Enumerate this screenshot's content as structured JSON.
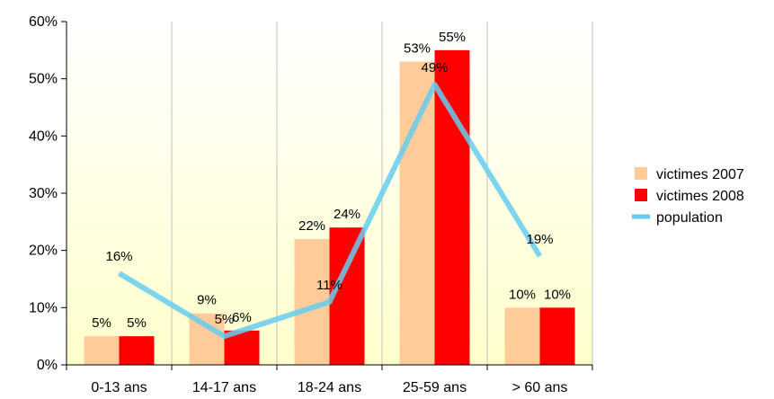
{
  "chart_data": {
    "type": "bar",
    "categories": [
      "0-13 ans",
      "14-17 ans",
      "18-24 ans",
      "25-59 ans",
      "> 60 ans"
    ],
    "series": [
      {
        "name": "victimes 2007",
        "kind": "bar",
        "color": "#FFCC99",
        "values": [
          5,
          9,
          22,
          53,
          10
        ]
      },
      {
        "name": "victimes 2008",
        "kind": "bar",
        "color": "#FF0000",
        "values": [
          5,
          6,
          24,
          55,
          10
        ]
      },
      {
        "name": "population",
        "kind": "line",
        "color": "#66CCEE",
        "values": [
          16,
          5,
          11,
          49,
          19
        ]
      }
    ],
    "data_label_suffix": "%",
    "title": "",
    "xlabel": "",
    "ylabel": "",
    "ylim": [
      0,
      60
    ],
    "yticks": [
      0,
      10,
      20,
      30,
      40,
      50,
      60
    ],
    "ytick_labels": [
      "0%",
      "10%",
      "20%",
      "30%",
      "40%",
      "50%",
      "60%"
    ],
    "plot_background": [
      "#FFFFFF",
      "#FFFFCC"
    ],
    "legend_position": "right",
    "grid": "vertical category separators"
  }
}
